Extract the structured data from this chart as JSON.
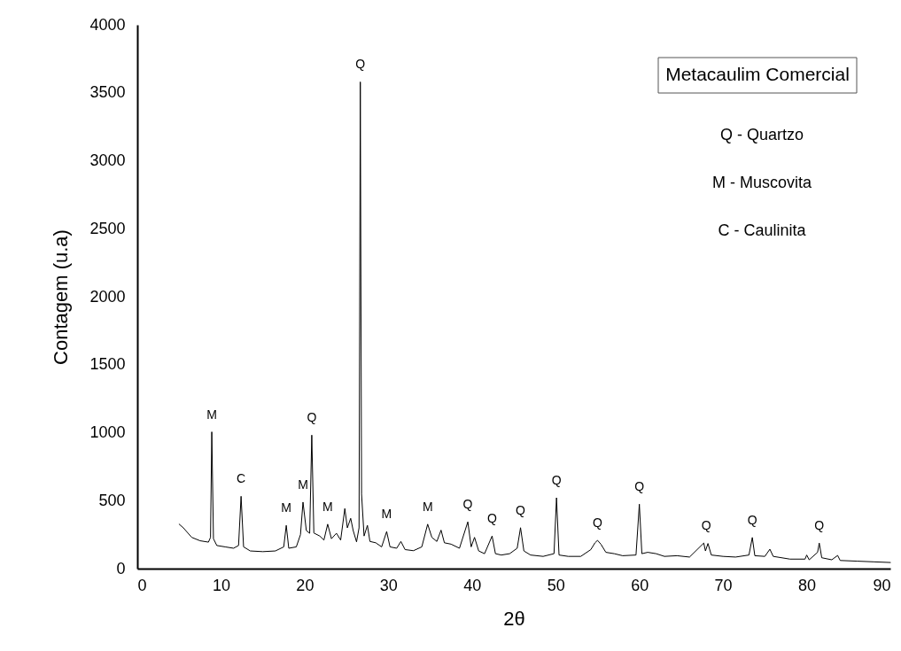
{
  "chart_data": {
    "type": "line",
    "xlabel": "2θ",
    "ylabel": "Contagem (u.a)",
    "x": [
      5,
      5.5,
      6.5,
      7.5,
      8.5,
      8.75,
      8.9,
      9.1,
      9.5,
      10.5,
      11.5,
      12.1,
      12.4,
      12.7,
      13.5,
      15,
      16.5,
      17.5,
      17.8,
      18.1,
      19,
      19.5,
      19.8,
      20.2,
      20.6,
      20.85,
      21.1,
      21.8,
      22.3,
      22.75,
      23.2,
      23.8,
      24.3,
      24.8,
      25.1,
      25.5,
      25.8,
      26.2,
      26.5,
      26.65,
      26.8,
      27.1,
      27.5,
      27.8,
      28.5,
      29.2,
      29.8,
      30.2,
      31,
      31.5,
      32,
      33,
      34,
      34.7,
      35.2,
      35.8,
      36.3,
      36.7,
      37.5,
      38.5,
      39.5,
      39.9,
      40.3,
      40.8,
      41.5,
      42.4,
      42.8,
      43.5,
      44.5,
      45.4,
      45.8,
      46.2,
      47,
      48.5,
      49.8,
      50.1,
      50.4,
      51.5,
      53,
      54.2,
      54.7,
      55,
      55.4,
      56,
      57,
      58,
      59.6,
      60,
      60.3,
      61,
      62,
      63,
      64.5,
      66,
      67.7,
      67.9,
      68.2,
      68.6,
      70,
      71.5,
      73.1,
      73.5,
      73.8,
      75,
      75.6,
      76,
      78,
      79.8,
      80,
      80.3,
      81.3,
      81.5,
      81.8,
      83,
      83.7,
      84,
      86,
      88,
      90
    ],
    "series": [
      {
        "color": "#000000",
        "values": [
          327,
          300,
          230,
          205,
          195,
          230,
          1006,
          220,
          170,
          160,
          150,
          170,
          532,
          160,
          130,
          125,
          130,
          160,
          318,
          150,
          160,
          250,
          489,
          280,
          260,
          982,
          262,
          240,
          210,
          327,
          220,
          260,
          210,
          442,
          300,
          370,
          280,
          197,
          300,
          3580,
          548,
          240,
          318,
          200,
          190,
          160,
          273,
          160,
          150,
          200,
          140,
          132,
          160,
          327,
          230,
          200,
          283,
          190,
          180,
          150,
          344,
          160,
          230,
          130,
          110,
          240,
          110,
          100,
          110,
          150,
          301,
          130,
          100,
          90,
          110,
          521,
          100,
          90,
          90,
          140,
          190,
          208,
          180,
          120,
          110,
          95,
          100,
          474,
          110,
          120,
          110,
          90,
          95,
          85,
          188,
          130,
          185,
          100,
          90,
          85,
          100,
          229,
          95,
          90,
          143,
          90,
          70,
          70,
          100,
          65,
          120,
          188,
          80,
          65,
          97,
          60,
          55,
          50,
          45
        ]
      }
    ],
    "xlim": [
      0,
      90
    ],
    "xticks": [
      0,
      10,
      20,
      30,
      40,
      50,
      60,
      70,
      80,
      90
    ],
    "ylim": [
      0,
      4000
    ],
    "yticks": [
      0,
      500,
      1000,
      1500,
      2000,
      2500,
      3000,
      3500,
      4000
    ],
    "grid": false,
    "annotations": [
      "Metacaulim Comercial",
      "Q - Quartzo",
      "M - Muscovita",
      "C - Caulinita",
      {
        "text": "M",
        "x": 8.9,
        "y": 1006
      },
      {
        "text": "C",
        "x": 12.4,
        "y": 532
      },
      {
        "text": "M",
        "x": 17.8,
        "y": 318
      },
      {
        "text": "M",
        "x": 19.8,
        "y": 489
      },
      {
        "text": "Q",
        "x": 20.85,
        "y": 982
      },
      {
        "text": "M",
        "x": 22.75,
        "y": 327
      },
      {
        "text": "Q",
        "x": 26.65,
        "y": 3580
      },
      {
        "text": "M",
        "x": 29.8,
        "y": 273
      },
      {
        "text": "M",
        "x": 34.7,
        "y": 327
      },
      {
        "text": "Q",
        "x": 39.5,
        "y": 344
      },
      {
        "text": "Q",
        "x": 42.4,
        "y": 240
      },
      {
        "text": "Q",
        "x": 45.8,
        "y": 301
      },
      {
        "text": "Q",
        "x": 50.1,
        "y": 521
      },
      {
        "text": "Q",
        "x": 55,
        "y": 208
      },
      {
        "text": "Q",
        "x": 60,
        "y": 474
      },
      {
        "text": "Q",
        "x": 68,
        "y": 188
      },
      {
        "text": "Q",
        "x": 73.5,
        "y": 229
      },
      {
        "text": "Q",
        "x": 81.5,
        "y": 188
      }
    ]
  }
}
